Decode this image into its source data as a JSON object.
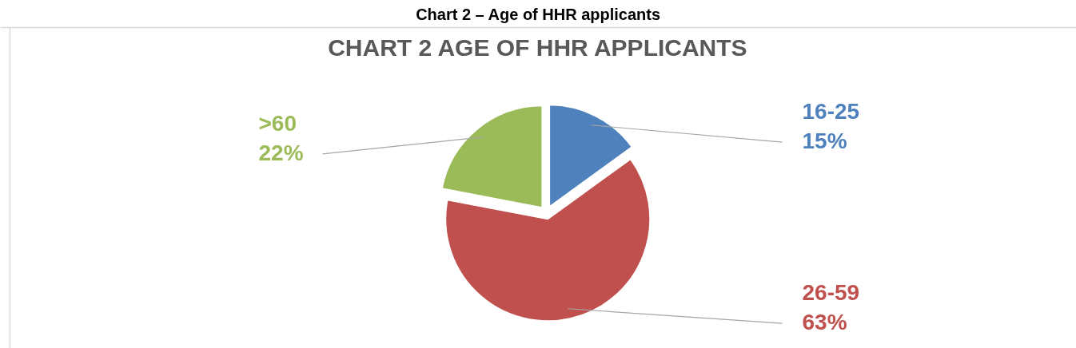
{
  "chart_data": {
    "type": "pie",
    "title": "Chart 2 – Age of HHR applicants",
    "subtitle": "CHART 2 AGE OF HHR APPLICANTS",
    "categories": [
      "16-25",
      "26-59",
      ">60"
    ],
    "values": [
      15,
      63,
      22
    ],
    "colors": [
      "#4f81bd",
      "#c0504d",
      "#9bbb59"
    ],
    "value_labels": [
      "15%",
      "63%",
      "22%"
    ]
  }
}
